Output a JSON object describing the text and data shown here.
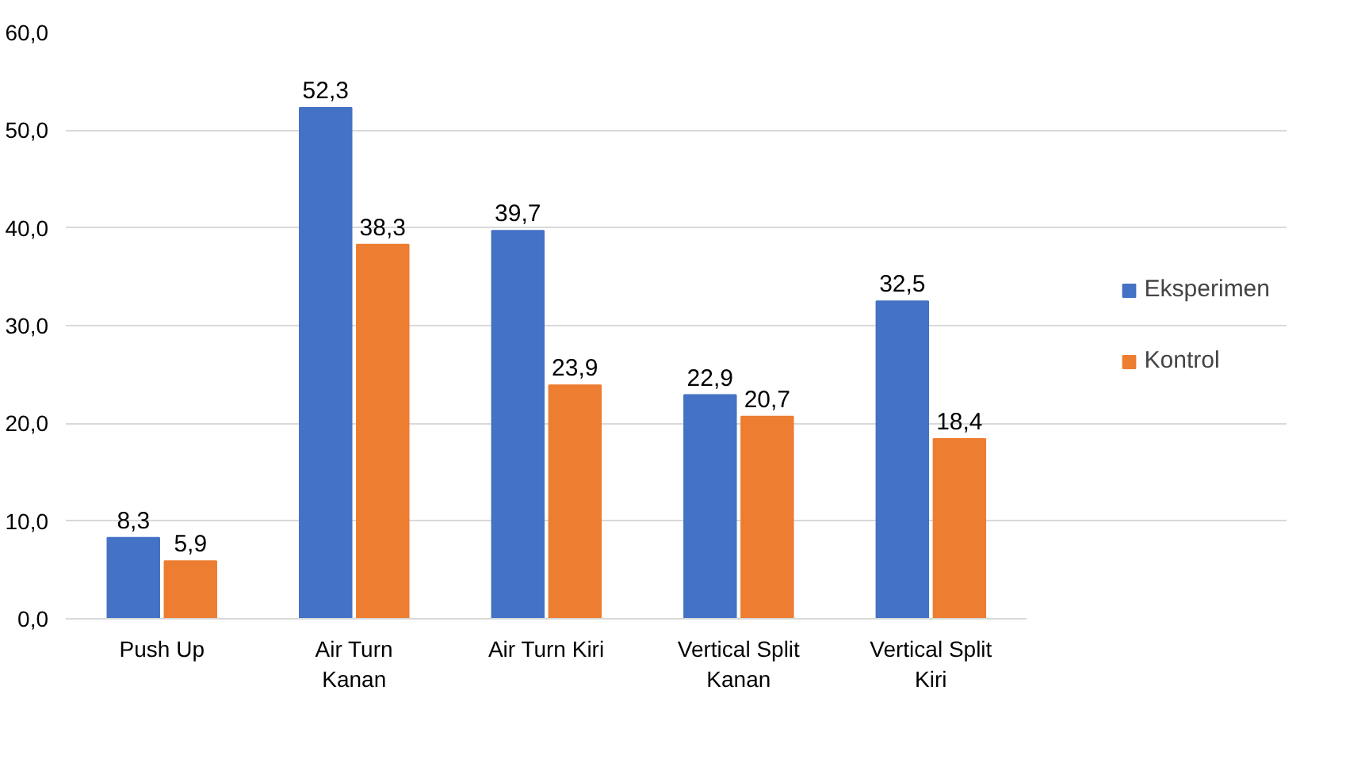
{
  "chart_data": {
    "type": "bar",
    "categories": [
      "Push Up",
      "Air Turn Kanan",
      "Air Turn Kiri",
      "Vertical Split Kanan",
      "Vertical Split Kiri"
    ],
    "series": [
      {
        "name": "Eksperimen",
        "color": "#4472c4",
        "values": [
          8.3,
          52.3,
          39.7,
          22.9,
          32.5
        ],
        "value_labels": [
          "8,3",
          "52,3",
          "39,7",
          "22,9",
          "32,5"
        ]
      },
      {
        "name": "Kontrol",
        "color": "#ed7d31",
        "values": [
          5.9,
          38.3,
          23.9,
          20.7,
          18.4
        ],
        "value_labels": [
          "5,9",
          "38,3",
          "23,9",
          "20,7",
          "18,4"
        ]
      }
    ],
    "ylim": [
      0,
      60
    ],
    "yticks": [
      {
        "value": 0,
        "label": "0,0"
      },
      {
        "value": 10,
        "label": "10,0"
      },
      {
        "value": 20,
        "label": "20,0"
      },
      {
        "value": 30,
        "label": "30,0"
      },
      {
        "value": 40,
        "label": "40,0"
      },
      {
        "value": 50,
        "label": "50,0"
      },
      {
        "value": 60,
        "label": "60,0"
      }
    ],
    "grid": "y",
    "legend": "right"
  }
}
